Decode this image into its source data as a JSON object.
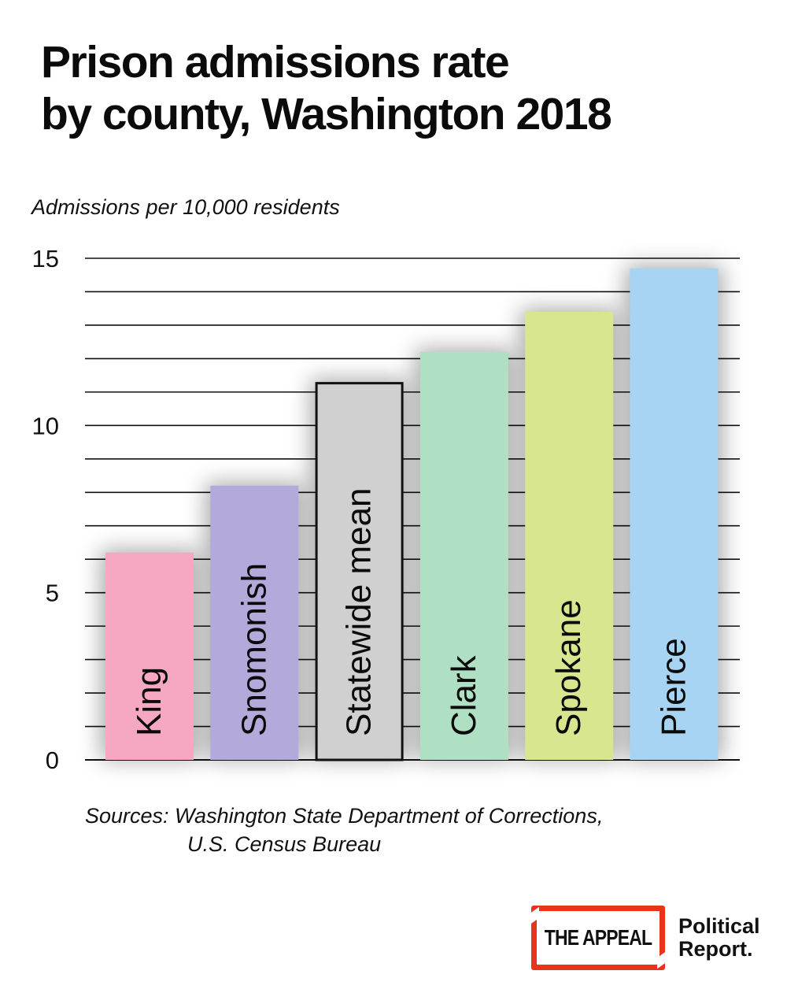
{
  "header": {
    "title_line1": "Prison admissions rate",
    "title_line2": "by county, Washington 2018",
    "unit": "Admissions per 10,000 residents"
  },
  "chart_data": {
    "type": "bar",
    "title": "Prison admissions rate by county, Washington 2018",
    "ylabel": "Admissions per 10,000 residents",
    "xlabel": "",
    "ylim": [
      0,
      15
    ],
    "yticks": [
      0,
      5,
      10,
      15
    ],
    "grid": true,
    "categories": [
      "King",
      "Snomonish",
      "Statewide mean",
      "Clark",
      "Spokane",
      "Pierce"
    ],
    "values": [
      6.2,
      8.2,
      11.3,
      12.2,
      13.4,
      14.7
    ],
    "colors": [
      "#f6a8c3",
      "#b4a9db",
      "#d0d0d0",
      "#b0e0c3",
      "#d8e690",
      "#a8d4f4"
    ],
    "highlight": "Statewide mean"
  },
  "footer": {
    "sources_line1": "Sources: Washington State Department of Corrections,",
    "sources_line2": "U.S. Census Bureau"
  },
  "logo": {
    "appeal": "THE APPEAL",
    "political_line1": "Political",
    "political_line2": "Report.",
    "accent": "#e8341c"
  }
}
